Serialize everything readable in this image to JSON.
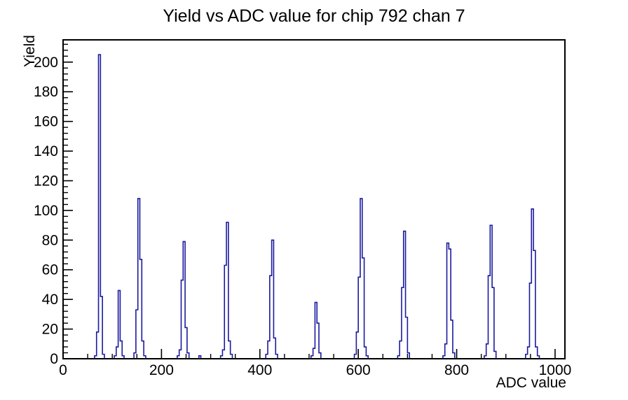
{
  "page": {
    "background": "#ffffff",
    "foreground": "#000000"
  },
  "chart_data": {
    "type": "bar",
    "title": "Yield vs ADC value for chip 792 chan 7",
    "xlabel": "ADC value",
    "ylabel": "Yield",
    "xlim": [
      0,
      1020
    ],
    "ylim": [
      0,
      215
    ],
    "x_major_ticks": [
      0,
      200,
      400,
      600,
      800,
      1000
    ],
    "x_minor_step": 50,
    "y_major_ticks": [
      0,
      20,
      40,
      60,
      80,
      100,
      120,
      140,
      160,
      180,
      200
    ],
    "y_minor_step": 4,
    "grid": false,
    "legend": false,
    "bin_width": 4,
    "line_color": "#1a1aa0",
    "axis_color": "#000000",
    "peaks": [
      {
        "adc": 74,
        "yield": 205
      },
      {
        "adc": 114,
        "yield": 46
      },
      {
        "adc": 154,
        "yield": 108
      },
      {
        "adc": 246,
        "yield": 79
      },
      {
        "adc": 334,
        "yield": 92
      },
      {
        "adc": 426,
        "yield": 80
      },
      {
        "adc": 514,
        "yield": 38
      },
      {
        "adc": 606,
        "yield": 108
      },
      {
        "adc": 694,
        "yield": 86
      },
      {
        "adc": 782,
        "yield": 78
      },
      {
        "adc": 870,
        "yield": 90
      },
      {
        "adc": 954,
        "yield": 101
      }
    ],
    "bins": [
      [
        64,
        2
      ],
      [
        68,
        18
      ],
      [
        72,
        205
      ],
      [
        76,
        42
      ],
      [
        80,
        3
      ],
      [
        104,
        2
      ],
      [
        108,
        8
      ],
      [
        112,
        46
      ],
      [
        116,
        12
      ],
      [
        120,
        2
      ],
      [
        144,
        4
      ],
      [
        148,
        33
      ],
      [
        152,
        108
      ],
      [
        156,
        67
      ],
      [
        160,
        12
      ],
      [
        164,
        2
      ],
      [
        232,
        2
      ],
      [
        236,
        6
      ],
      [
        240,
        53
      ],
      [
        244,
        79
      ],
      [
        248,
        21
      ],
      [
        252,
        4
      ],
      [
        276,
        2
      ],
      [
        320,
        2
      ],
      [
        324,
        6
      ],
      [
        328,
        63
      ],
      [
        332,
        92
      ],
      [
        336,
        12
      ],
      [
        340,
        3
      ],
      [
        412,
        3
      ],
      [
        416,
        12
      ],
      [
        420,
        56
      ],
      [
        424,
        80
      ],
      [
        428,
        14
      ],
      [
        432,
        3
      ],
      [
        504,
        2
      ],
      [
        508,
        7
      ],
      [
        512,
        38
      ],
      [
        516,
        24
      ],
      [
        520,
        4
      ],
      [
        592,
        3
      ],
      [
        596,
        18
      ],
      [
        600,
        55
      ],
      [
        604,
        108
      ],
      [
        608,
        68
      ],
      [
        612,
        8
      ],
      [
        616,
        2
      ],
      [
        680,
        2
      ],
      [
        684,
        12
      ],
      [
        688,
        48
      ],
      [
        692,
        86
      ],
      [
        696,
        28
      ],
      [
        700,
        4
      ],
      [
        772,
        2
      ],
      [
        776,
        10
      ],
      [
        780,
        78
      ],
      [
        784,
        74
      ],
      [
        788,
        26
      ],
      [
        792,
        4
      ],
      [
        856,
        2
      ],
      [
        860,
        10
      ],
      [
        864,
        56
      ],
      [
        868,
        90
      ],
      [
        872,
        48
      ],
      [
        876,
        5
      ],
      [
        940,
        3
      ],
      [
        944,
        8
      ],
      [
        948,
        51
      ],
      [
        952,
        101
      ],
      [
        956,
        73
      ],
      [
        960,
        8
      ],
      [
        964,
        2
      ]
    ]
  }
}
